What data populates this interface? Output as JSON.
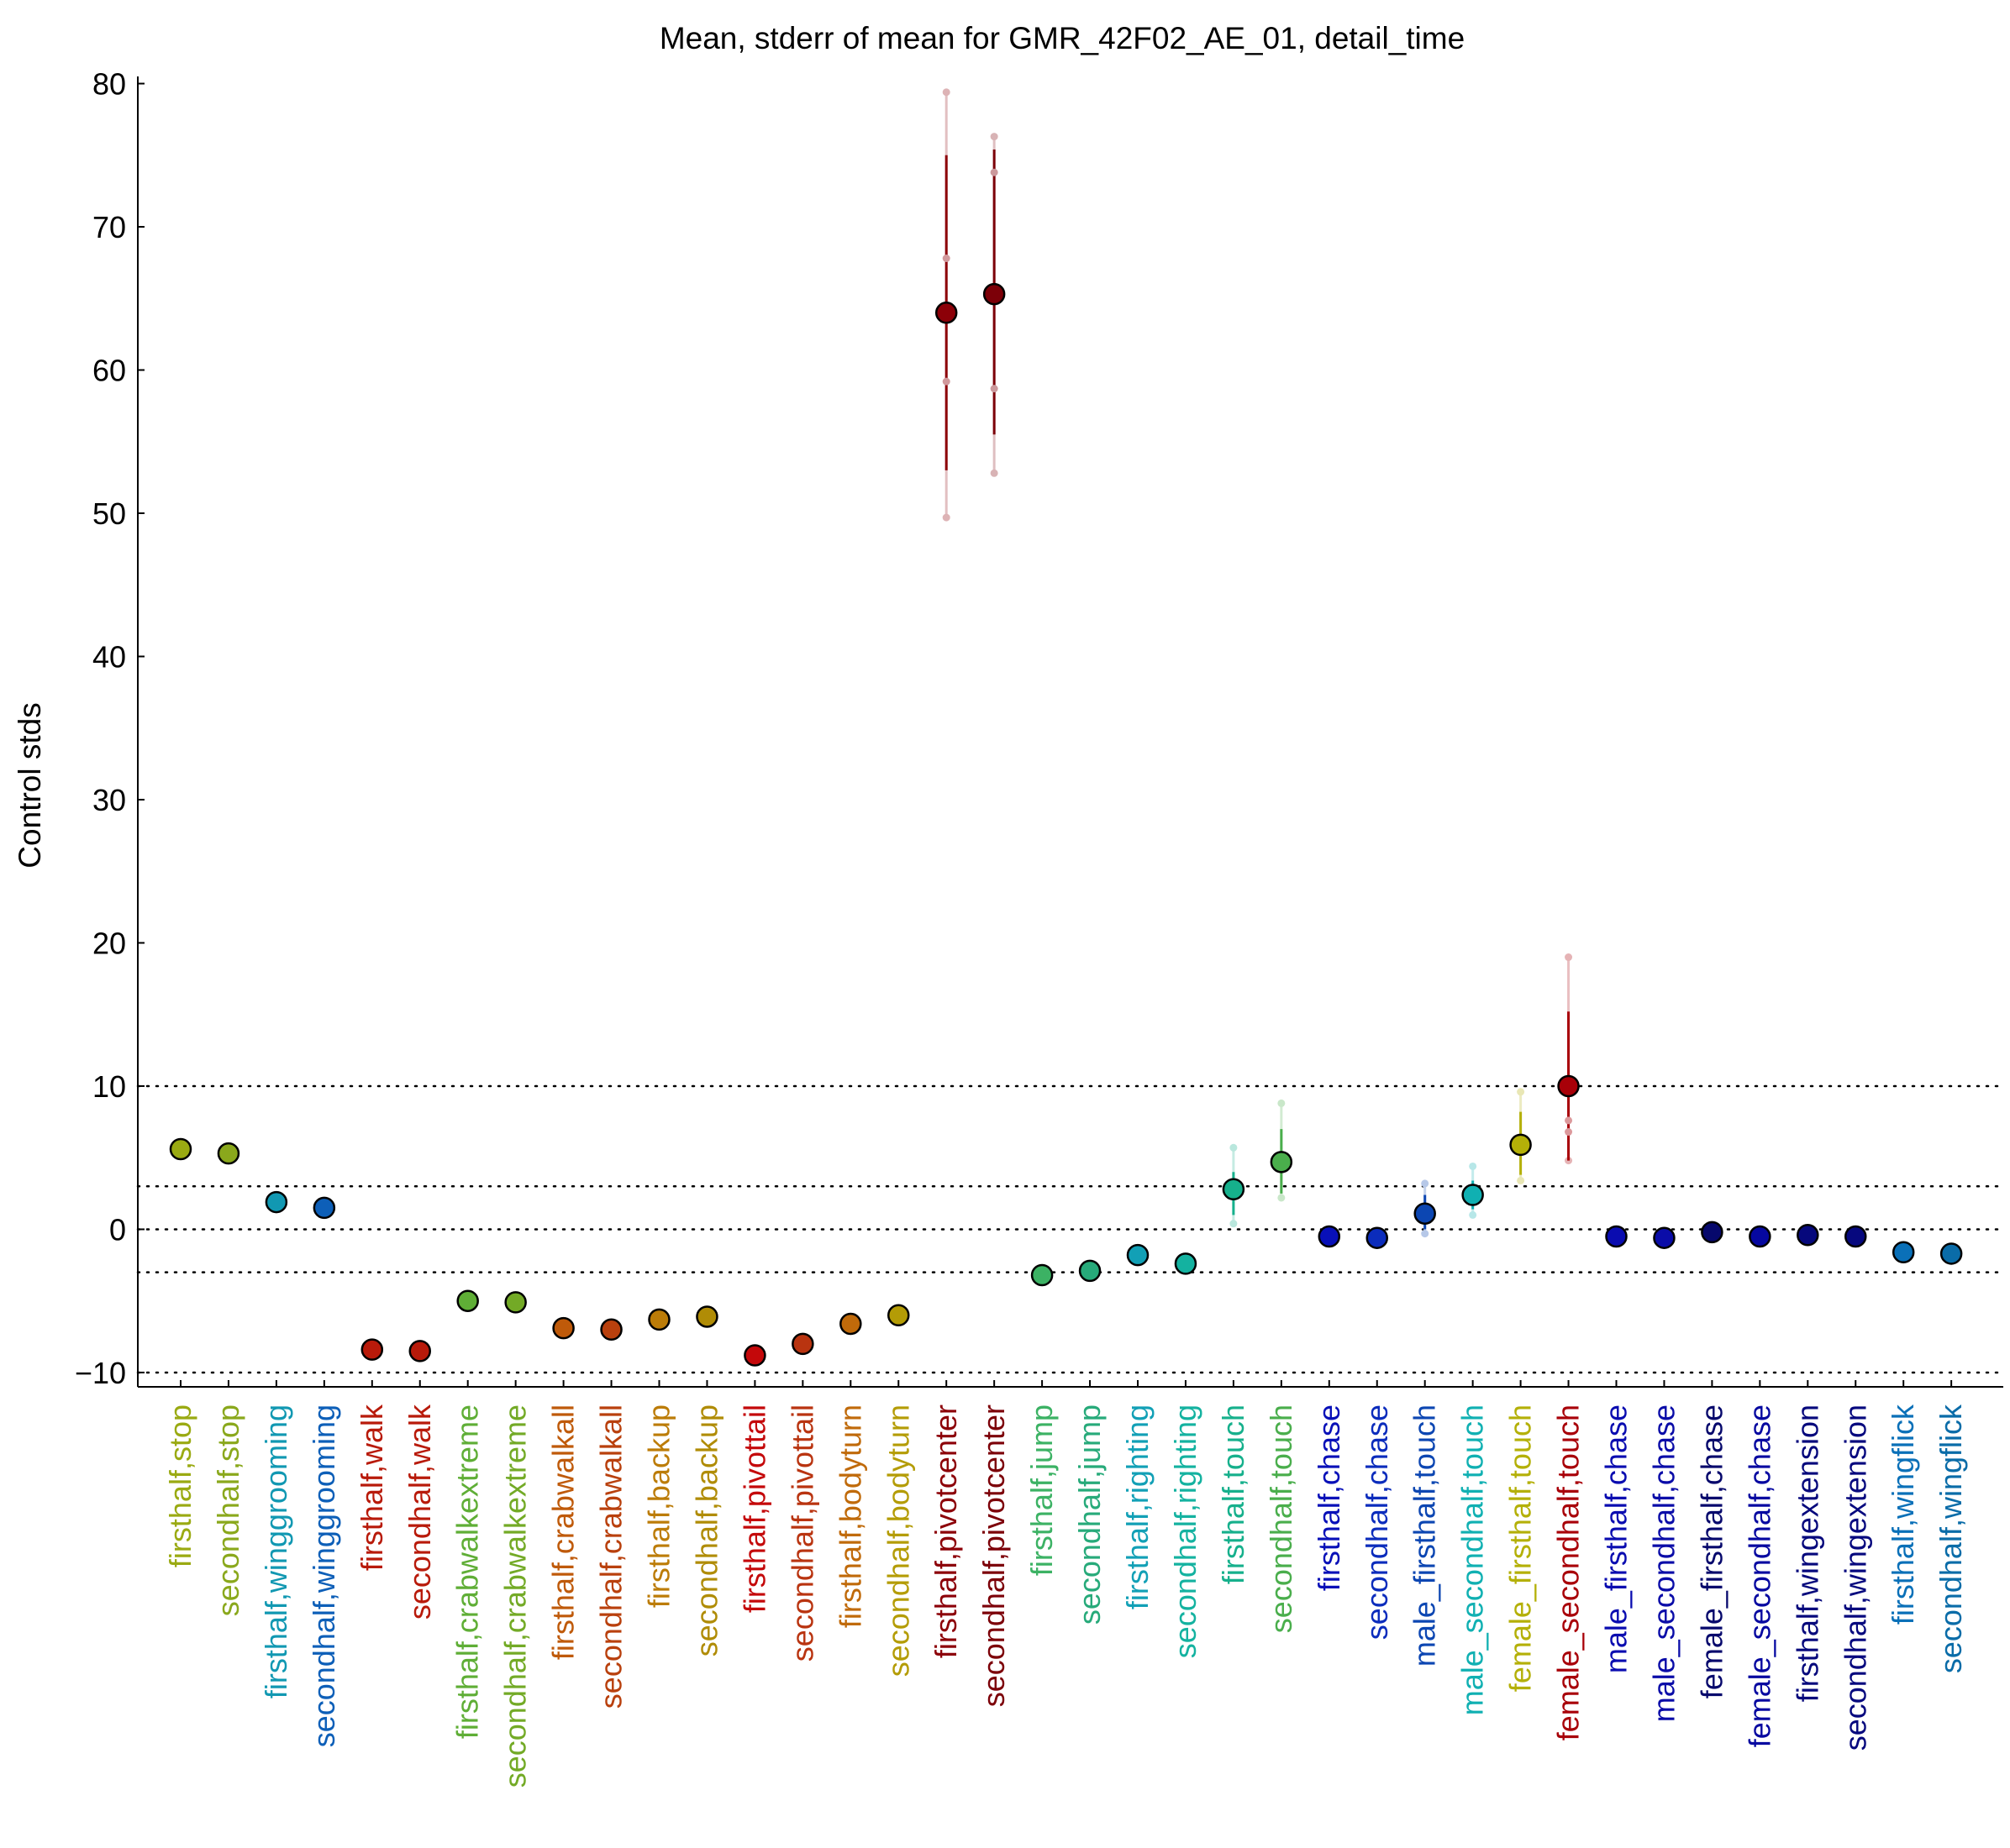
{
  "chart_data": {
    "type": "scatter",
    "title": "Mean, stderr of mean for GMR_42F02_AE_01, detail_time",
    "xlabel": "",
    "ylabel": "Control stds",
    "ylim": [
      -11,
      80.5
    ],
    "yticks": [
      -10,
      0,
      10,
      20,
      30,
      40,
      50,
      60,
      70,
      80
    ],
    "ytick_labels": [
      "−10",
      "0",
      "10",
      "20",
      "30",
      "40",
      "50",
      "60",
      "70",
      "80"
    ],
    "reference_lines": [
      10,
      3,
      0,
      -3,
      -10
    ],
    "grid": false,
    "legend": "none",
    "points": [
      {
        "label": "firsthalf,stop",
        "color": "#9aaa12",
        "mean": 5.6
      },
      {
        "label": "secondhalf,stop",
        "color": "#8aa81c",
        "mean": 5.3
      },
      {
        "label": "firsthalf,winggrooming",
        "color": "#1198b2",
        "mean": 1.9
      },
      {
        "label": "secondhalf,winggrooming",
        "color": "#0d5fb8",
        "mean": 1.5
      },
      {
        "label": "firsthalf,walk",
        "color": "#b81a0a",
        "mean": -8.4
      },
      {
        "label": "secondhalf,walk",
        "color": "#b81a0a",
        "mean": -8.5
      },
      {
        "label": "firsthalf,crabwalkextreme",
        "color": "#5fae36",
        "mean": -5.0
      },
      {
        "label": "secondhalf,crabwalkextreme",
        "color": "#73aa26",
        "mean": -5.1
      },
      {
        "label": "firsthalf,crabwalkall",
        "color": "#bf5a0a",
        "mean": -6.9
      },
      {
        "label": "secondhalf,crabwalkall",
        "color": "#b9400d",
        "mean": -7.0
      },
      {
        "label": "firsthalf,backup",
        "color": "#bc7c08",
        "mean": -6.3
      },
      {
        "label": "secondhalf,backup",
        "color": "#b08c06",
        "mean": -6.1
      },
      {
        "label": "firsthalf,pivottail",
        "color": "#c4080a",
        "mean": -8.8
      },
      {
        "label": "secondhalf,pivottail",
        "color": "#b93410",
        "mean": -8.0
      },
      {
        "label": "firsthalf,bodyturn",
        "color": "#c06a0a",
        "mean": -6.6
      },
      {
        "label": "secondhalf,bodyturn",
        "color": "#b49c06",
        "mean": -6.0
      },
      {
        "label": "firsthalf,pivotcenter",
        "color": "#8c0008",
        "mean": 64.0,
        "sem": [
          53.0,
          75.0
        ],
        "extent": [
          49.7,
          79.4
        ],
        "marks": [
          59.2,
          67.8
        ]
      },
      {
        "label": "secondhalf,pivotcenter",
        "color": "#7c0008",
        "mean": 65.3,
        "sem": [
          55.5,
          75.4
        ],
        "extent": [
          52.8,
          76.3
        ],
        "marks": [
          58.7,
          73.8
        ]
      },
      {
        "label": "firsthalf,jump",
        "color": "#3cb264",
        "mean": -3.2
      },
      {
        "label": "secondhalf,jump",
        "color": "#27aa7a",
        "mean": -2.9
      },
      {
        "label": "firsthalf,righting",
        "color": "#12a0b6",
        "mean": -1.8
      },
      {
        "label": "secondhalf,righting",
        "color": "#14b2a0",
        "mean": -2.4
      },
      {
        "label": "firsthalf,touch",
        "color": "#16b08c",
        "mean": 2.8,
        "sem": [
          1.0,
          4.0
        ],
        "extent": [
          0.4,
          5.7
        ]
      },
      {
        "label": "secondhalf,touch",
        "color": "#4aae4c",
        "mean": 4.7,
        "sem": [
          2.5,
          7.0
        ],
        "extent": [
          2.2,
          8.8
        ]
      },
      {
        "label": "firsthalf,chase",
        "color": "#0810b8",
        "mean": -0.5
      },
      {
        "label": "secondhalf,chase",
        "color": "#0b2cbc",
        "mean": -0.6
      },
      {
        "label": "male_firsthalf,touch",
        "color": "#0c46b2",
        "mean": 1.1,
        "sem": [
          0.0,
          2.4
        ],
        "extent": [
          -0.3,
          3.2
        ]
      },
      {
        "label": "male_secondhalf,touch",
        "color": "#10b0b2",
        "mean": 2.4,
        "sem": [
          1.4,
          3.4
        ],
        "extent": [
          1.0,
          4.4
        ]
      },
      {
        "label": "female_firsthalf,touch",
        "color": "#b4b008",
        "mean": 5.9,
        "sem": [
          3.8,
          8.2
        ],
        "extent": [
          3.4,
          9.6
        ]
      },
      {
        "label": "female_secondhalf,touch",
        "color": "#a80008",
        "mean": 10.0,
        "sem": [
          4.8,
          15.2
        ],
        "extent": [
          4.8,
          19.0
        ],
        "marks": [
          6.8,
          7.6
        ]
      },
      {
        "label": "male_firsthalf,chase",
        "color": "#0a0cb0",
        "mean": -0.5
      },
      {
        "label": "male_secondhalf,chase",
        "color": "#0a0ca8",
        "mean": -0.6
      },
      {
        "label": "female_firsthalf,chase",
        "color": "#06086c",
        "mean": -0.2
      },
      {
        "label": "female_secondhalf,chase",
        "color": "#0608a0",
        "mean": -0.5
      },
      {
        "label": "firsthalf,wingextension",
        "color": "#06087c",
        "mean": -0.4
      },
      {
        "label": "secondhalf,wingextension",
        "color": "#06087e",
        "mean": -0.5
      },
      {
        "label": "firsthalf,wingflick",
        "color": "#0a70b8",
        "mean": -1.6
      },
      {
        "label": "secondhalf,wingflick",
        "color": "#0a6ca8",
        "mean": -1.7
      }
    ]
  }
}
